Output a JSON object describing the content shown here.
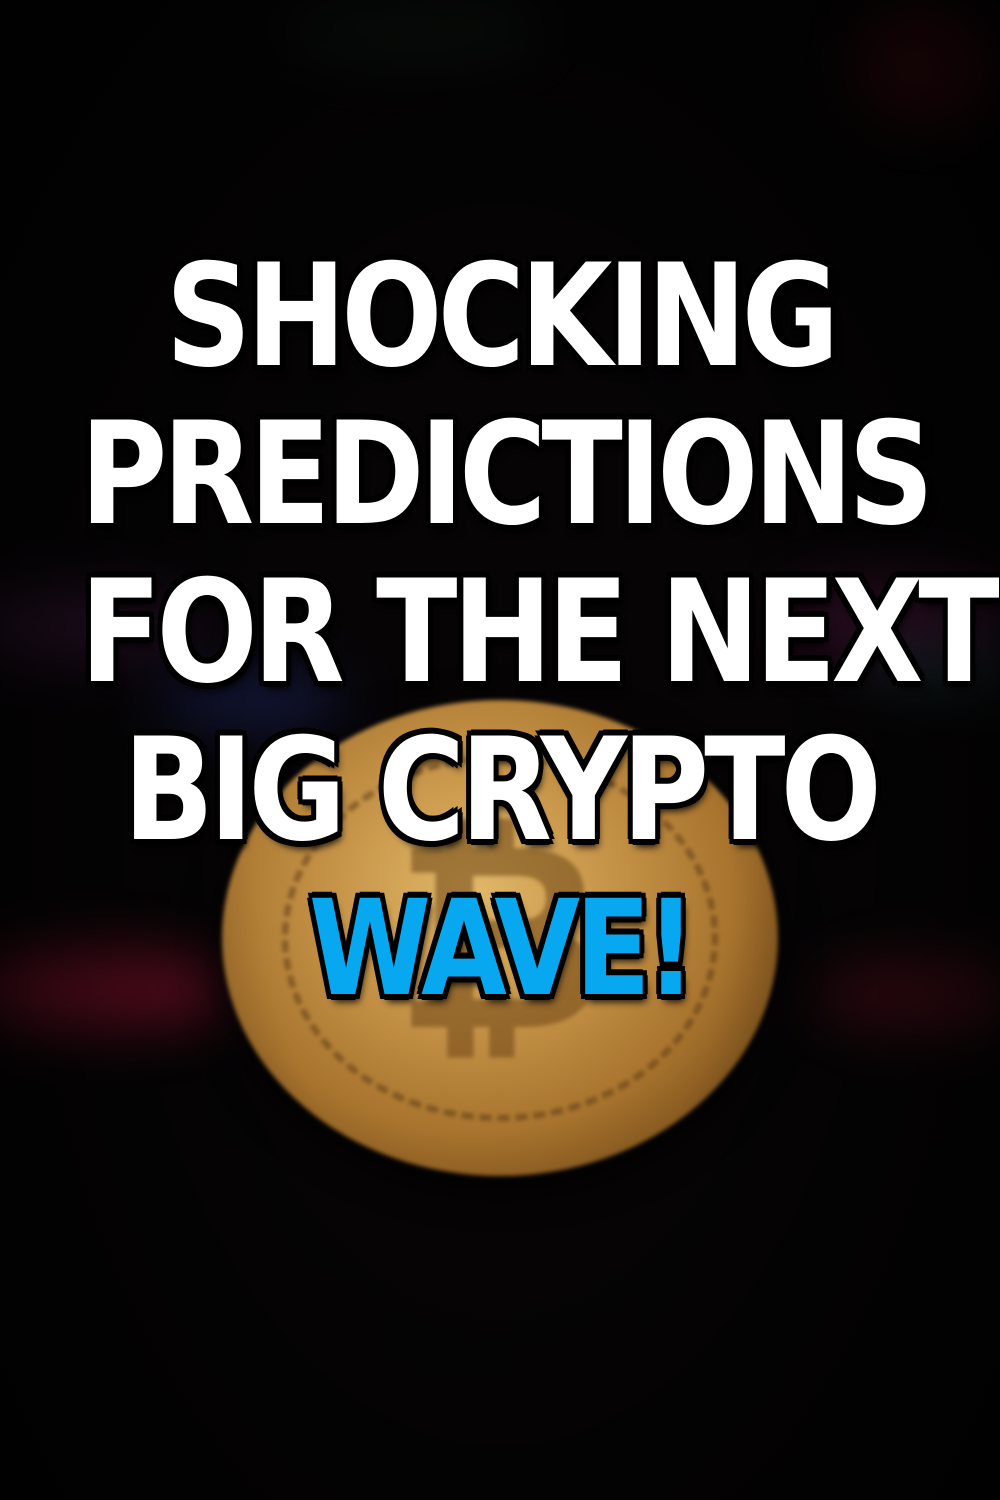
{
  "headline": {
    "lines": [
      "SHOCKING",
      "PREDICTIONS",
      "FOR THE NEXT",
      "BIG CRYPTO"
    ],
    "accent_line": "WAVE!"
  },
  "colors": {
    "background": "#060405",
    "headline_text": "#ffffff",
    "headline_outline": "#000000",
    "accent_text": "#08a8f0",
    "coin_gold": "#c8964a"
  },
  "image": {
    "subject": "bitcoin-coin"
  }
}
